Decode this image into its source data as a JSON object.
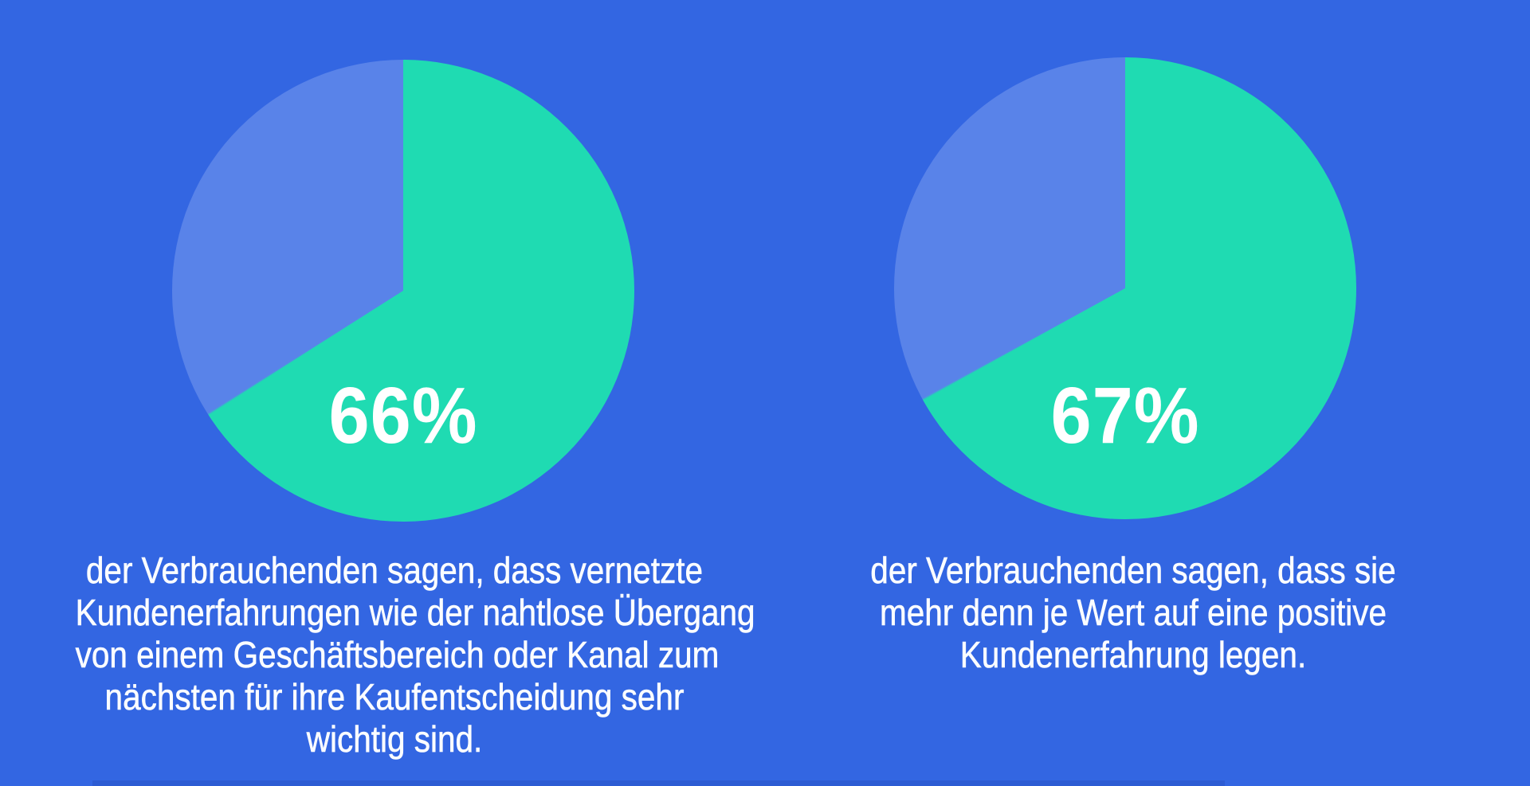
{
  "canvas": {
    "background_color": "#3366E2",
    "bottom_strip_color": "#2D5CD3"
  },
  "colors": {
    "slice_main_green": "#1FDBB2",
    "slice_rest_periwinkle": "#5983E9",
    "label_white": "#FFFFFF",
    "caption_white": "#FBFDFF"
  },
  "chart_data": [
    {
      "type": "pie",
      "values": [
        66,
        34
      ],
      "slice_colors": [
        "#1FDBB2",
        "#5983E9"
      ],
      "start_angle_deg": 0,
      "direction": "clockwise",
      "label": "66%",
      "caption": "der Verbrauchenden sagen, dass vernetzte Kundenerfahrungen wie der nahtlose Übergang von einem Geschäftsbereich oder Kanal zum nächsten für ihre Kaufentscheidung sehr wichtig sind.",
      "caption_lines": [
        "der Verbrauchenden sagen, dass vernetzte",
        "Kundenerfahrungen wie der nahtlose Übergang",
        "von einem Geschäftsbereich oder Kanal zum",
        "nächsten für ihre Kaufentscheidung sehr",
        "wichtig sind."
      ]
    },
    {
      "type": "pie",
      "values": [
        67,
        33
      ],
      "slice_colors": [
        "#1FDBB2",
        "#5983E9"
      ],
      "start_angle_deg": 0,
      "direction": "clockwise",
      "label": "67%",
      "caption": "der Verbrauchenden sagen, dass sie mehr denn je Wert auf eine positive Kundenerfahrung legen.",
      "caption_lines": [
        "der Verbrauchenden sagen, dass sie",
        "mehr denn je Wert auf eine positive",
        "Kundenerfahrung legen."
      ]
    }
  ]
}
